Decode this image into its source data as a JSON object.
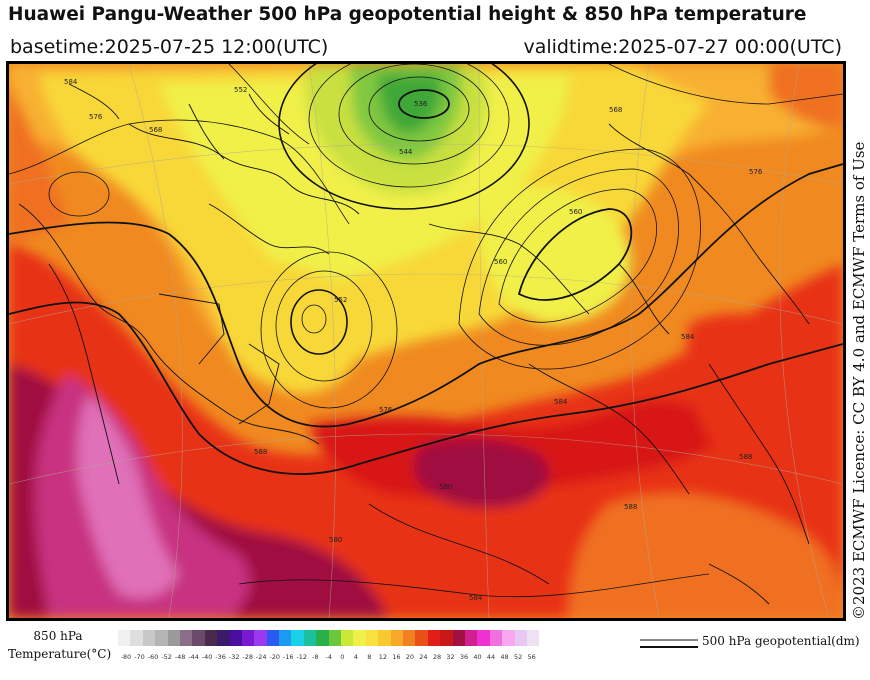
{
  "header": {
    "title": "Huawei Pangu-Weather 500 hPa geopotential height & 850 hPa temperature",
    "basetime": "basetime:2025-07-25 12:00(UTC)",
    "validtime": "validtime:2025-07-27 00:00(UTC)"
  },
  "credit": "©2023 ECMWF Licence: CC BY 4.0 and ECMWF Terms of Use",
  "colorbar": {
    "title_line1": "850 hPa",
    "title_line2": "Temperature(°C)",
    "ticks": [
      "-80",
      "-70",
      "-60",
      "-52",
      "-48",
      "-44",
      "-40",
      "-36",
      "-32",
      "-28",
      "-24",
      "-20",
      "-16",
      "-12",
      "-8",
      "-4",
      "0",
      "4",
      "8",
      "12",
      "16",
      "20",
      "24",
      "28",
      "32",
      "36",
      "40",
      "44",
      "48",
      "52",
      "56"
    ],
    "colors": [
      "#f0f0f0",
      "#dedede",
      "#c8c8c8",
      "#b4b4b4",
      "#9a9a9a",
      "#8a6f8a",
      "#6a4a6a",
      "#4a2a4a",
      "#3a1a6a",
      "#4b0fa0",
      "#7a1ad0",
      "#9a3af0",
      "#2a5af0",
      "#1a9af0",
      "#1ad0e8",
      "#1ac0a0",
      "#2ab04a",
      "#6ac83a",
      "#c8e83a",
      "#f0f04a",
      "#f8e040",
      "#f8c830",
      "#f8a828",
      "#f08020",
      "#e85018",
      "#e02018",
      "#c81818",
      "#a01040",
      "#d02090",
      "#f030d0",
      "#f070e0",
      "#f8a8f0",
      "#e8c8f0",
      "#f0e0f4"
    ]
  },
  "legend": {
    "label": "500 hPa geopotential(dm)"
  },
  "map": {
    "contour_labels": [
      "584",
      "576",
      "568",
      "552",
      "544",
      "536",
      "552",
      "560",
      "568",
      "560",
      "576",
      "584",
      "588",
      "576",
      "584",
      "580",
      "588",
      "580",
      "584",
      "588"
    ]
  }
}
